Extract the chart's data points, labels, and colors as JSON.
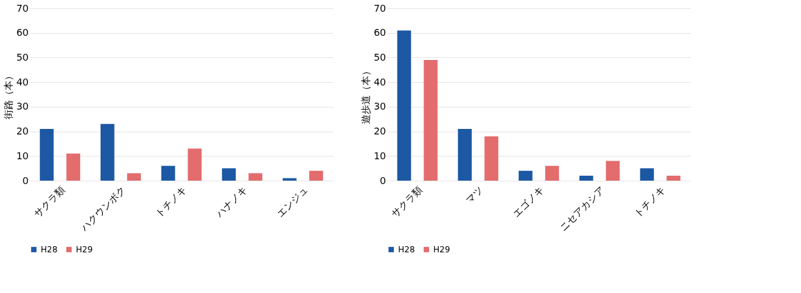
{
  "chart_data": [
    {
      "type": "bar",
      "ylabel": "街路（本）",
      "categories": [
        "サクラ類",
        "ハクウンボク",
        "トチノキ",
        "ハナノキ",
        "エンジュ"
      ],
      "series": [
        {
          "name": "H28",
          "color": "#1c58a3",
          "values": [
            21,
            23,
            6,
            5,
            1
          ]
        },
        {
          "name": "H29",
          "color": "#e36c6c",
          "values": [
            11,
            3,
            13,
            3,
            4
          ]
        }
      ],
      "ylim": [
        0,
        70
      ],
      "yticks": [
        0,
        10,
        20,
        30,
        40,
        50,
        60,
        70
      ],
      "grid": "y",
      "legend": "bottom"
    },
    {
      "type": "bar",
      "ylabel": "遊歩道（本）",
      "categories": [
        "サクラ類",
        "マツ",
        "エゴノキ",
        "ニセアカシア",
        "トチノキ"
      ],
      "series": [
        {
          "name": "H28",
          "color": "#1c58a3",
          "values": [
            61,
            21,
            4,
            2,
            5
          ]
        },
        {
          "name": "H29",
          "color": "#e36c6c",
          "values": [
            49,
            18,
            6,
            8,
            2
          ]
        }
      ],
      "ylim": [
        0,
        70
      ],
      "yticks": [
        0,
        10,
        20,
        30,
        40,
        50,
        60,
        70
      ],
      "grid": "y",
      "legend": "bottom"
    }
  ]
}
